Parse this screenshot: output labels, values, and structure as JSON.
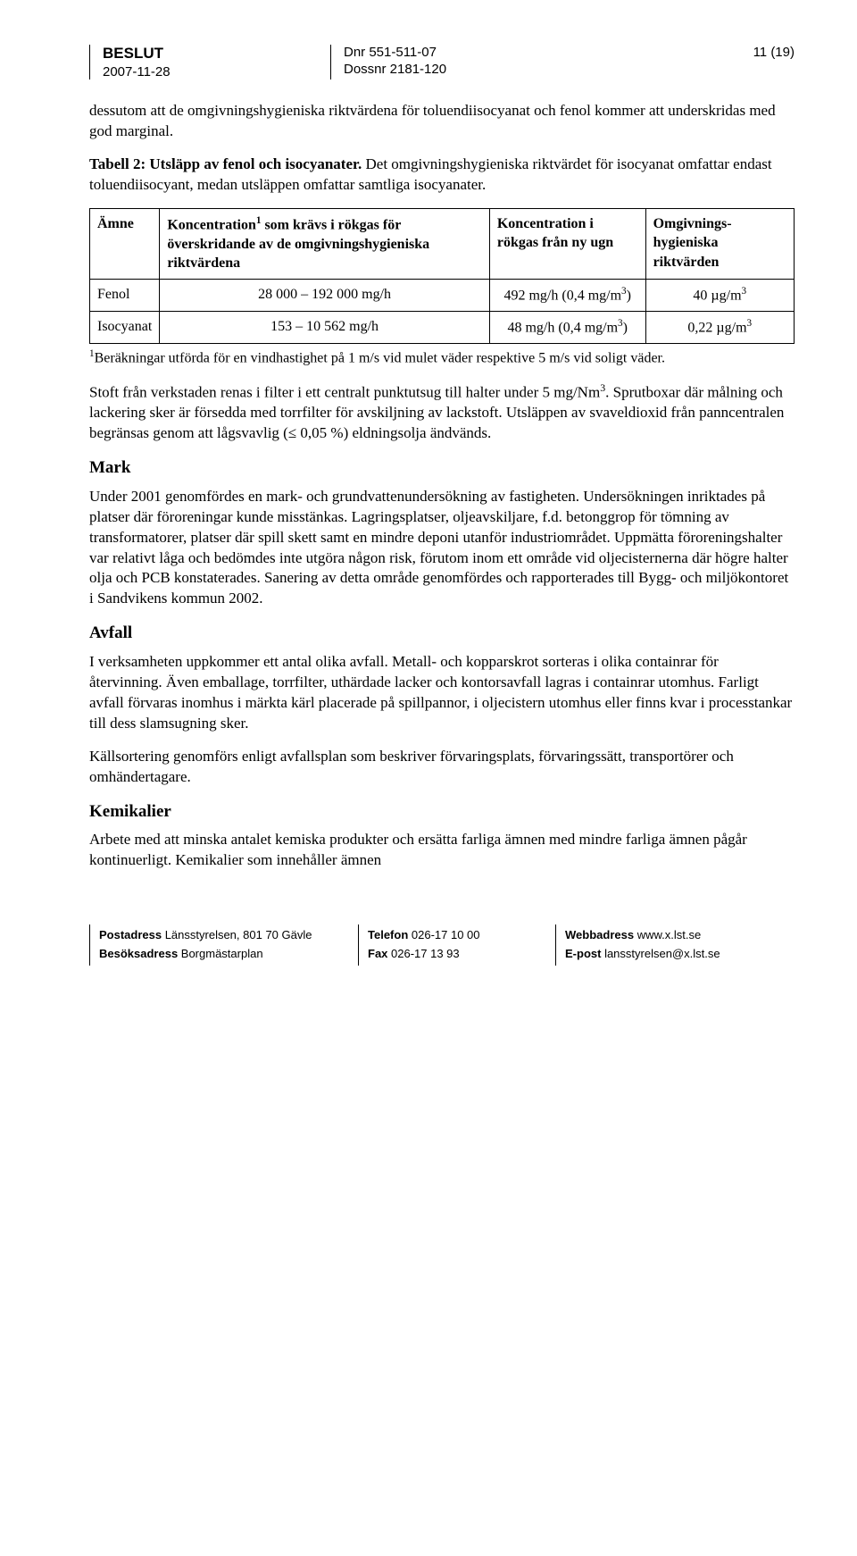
{
  "header": {
    "title": "BESLUT",
    "date": "2007-11-28",
    "page": "11 (19)",
    "dnr": "Dnr 551-511-07",
    "dossnr": "Dossnr 2181-120"
  },
  "intro_para": "dessutom att de omgivningshygieniska riktvärdena för toluendiisocyanat och fenol kommer att underskridas med god marginal.",
  "table_caption_part1": "Tabell 2: Utsläpp av fenol och isocyanater.",
  "table_caption_part2": " Det omgivningshygieniska riktvärdet för isocyanat omfattar endast toluendiisocyant, medan utsläppen omfattar samtliga isocyanater.",
  "table": {
    "col0": "Ämne",
    "col1_pre": "Koncentration",
    "col1_post": " som krävs i rökgas för överskridande av de omgivningshygieniska riktvärdena",
    "col2": "Koncentration i rökgas från ny ugn",
    "col3": "Omgivnings-hygieniska riktvärden",
    "r1c0": "Fenol",
    "r1c1": "28 000 – 192 000 mg/h",
    "r1c2_pre": "492 mg/h (0,4 mg/m",
    "r1c2_post": ")",
    "r1c3_pre": "40 µg/m",
    "r2c0": "Isocyanat",
    "r2c1": "153 – 10 562 mg/h",
    "r2c2_pre": "48 mg/h (0,4 mg/m",
    "r2c2_post": ")",
    "r2c3_pre": "0,22 µg/m"
  },
  "footnote": "Beräkningar utförda för en vindhastighet på 1 m/s vid mulet väder respektive 5 m/s vid soligt väder.",
  "stoft_para_a": "Stoft från verkstaden renas i filter i ett centralt punktutsug till halter under 5 mg/Nm",
  "stoft_para_b": ". Sprutboxar där målning och lackering sker är försedda med torrfilter för avskiljning av lackstoft. Utsläppen av svaveldioxid från panncentralen begränsas genom att lågsvavlig (≤ 0,05 %) eldningsolja ändvänds.",
  "mark_h": "Mark",
  "mark_para": "Under 2001 genomfördes en mark- och grundvattenundersökning av fastigheten. Undersökningen inriktades på platser där föroreningar kunde misstänkas. Lagringsplatser, oljeavskiljare, f.d. betonggrop för tömning av transformatorer, platser där spill skett samt en mindre deponi utanför industriområdet. Uppmätta föroreningshalter var relativt låga och bedömdes inte utgöra någon risk, förutom inom ett område vid oljecisternerna där högre halter olja och PCB konstaterades. Sanering av detta område genomfördes och rapporterades till Bygg- och miljökontoret i Sandvikens kommun 2002.",
  "avfall_h": "Avfall",
  "avfall_p1": "I verksamheten uppkommer ett antal olika avfall. Metall- och kopparskrot sorteras i olika containrar för återvinning. Även emballage, torrfilter, uthärdade lacker och kontorsavfall lagras i containrar utomhus. Farligt avfall förvaras inomhus i märkta kärl placerade på spillpannor, i oljecistern utomhus eller finns kvar i processtankar till dess slamsugning sker.",
  "avfall_p2": "Källsortering genomförs enligt avfallsplan som beskriver förvaringsplats, förvaringssätt, transportörer och omhändertagare.",
  "kem_h": "Kemikalier",
  "kem_p1": "Arbete med att minska antalet kemiska produkter och ersätta farliga ämnen med mindre farliga ämnen pågår kontinuerligt. Kemikalier som innehåller ämnen",
  "footer": {
    "post_label": "Postadress",
    "post_val": " Länsstyrelsen, 801 70 Gävle",
    "besok_label": "Besöksadress",
    "besok_val": " Borgmästarplan",
    "tel_label": "Telefon",
    "tel_val": " 026-17 10 00",
    "fax_label": "Fax",
    "fax_val": " 026-17 13 93",
    "web_label": "Webbadress",
    "web_val": " www.x.lst.se",
    "email_label": "E-post",
    "email_val": " lansstyrelsen@x.lst.se"
  }
}
